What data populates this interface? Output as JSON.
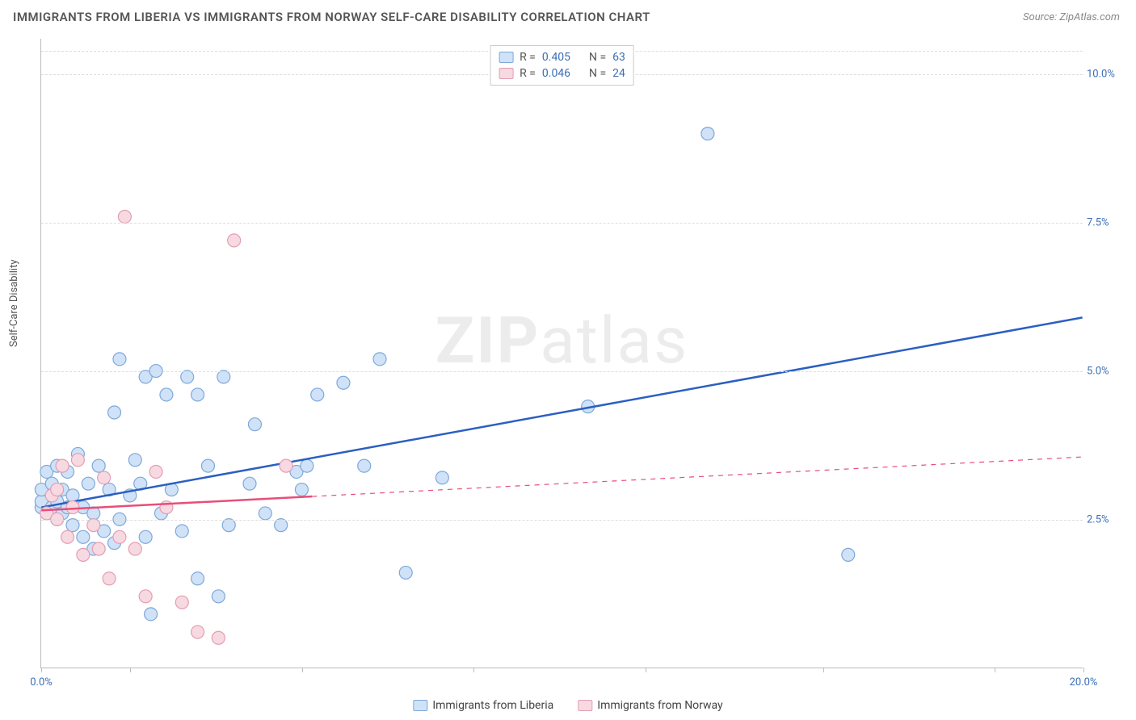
{
  "title": "IMMIGRANTS FROM LIBERIA VS IMMIGRANTS FROM NORWAY SELF-CARE DISABILITY CORRELATION CHART",
  "source": "Source: ZipAtlas.com",
  "ylabel": "Self-Care Disability",
  "watermark_bold": "ZIP",
  "watermark_rest": "atlas",
  "chart": {
    "type": "scatter",
    "xlim": [
      0,
      20
    ],
    "ylim": [
      0,
      10.6
    ],
    "xtick_positions": [
      0,
      1.7,
      5,
      8.3,
      11.6,
      15,
      18.3,
      20
    ],
    "xtick_labels": {
      "0": "0.0%",
      "20": "20.0%"
    },
    "ytick_positions": [
      2.5,
      5.0,
      7.5,
      10.0
    ],
    "ytick_labels": [
      "2.5%",
      "5.0%",
      "7.5%",
      "10.0%"
    ],
    "background_color": "#ffffff",
    "grid_color": "#dddddd",
    "axis_color": "#bbbbbb",
    "marker_radius": 8,
    "marker_stroke_width": 1.2,
    "line_width": 2.5,
    "series": [
      {
        "name": "Immigrants from Liberia",
        "fill": "#cfe2f7",
        "stroke": "#7fa8d9",
        "line_color": "#2b5fc1",
        "R": "0.405",
        "N": "63",
        "trend": {
          "x1": 0,
          "y1": 2.7,
          "x2": 20,
          "y2": 5.9
        },
        "trend_dash_after_x": null,
        "points": [
          [
            0.0,
            2.7
          ],
          [
            0.0,
            2.8
          ],
          [
            0.0,
            3.0
          ],
          [
            0.1,
            2.6
          ],
          [
            0.1,
            3.3
          ],
          [
            0.2,
            2.7
          ],
          [
            0.2,
            3.1
          ],
          [
            0.3,
            2.5
          ],
          [
            0.3,
            2.8
          ],
          [
            0.3,
            3.4
          ],
          [
            0.4,
            2.6
          ],
          [
            0.4,
            3.0
          ],
          [
            0.5,
            2.7
          ],
          [
            0.5,
            3.3
          ],
          [
            0.6,
            2.4
          ],
          [
            0.6,
            2.9
          ],
          [
            0.7,
            3.6
          ],
          [
            0.8,
            2.2
          ],
          [
            0.8,
            2.7
          ],
          [
            0.9,
            3.1
          ],
          [
            1.0,
            2.0
          ],
          [
            1.0,
            2.6
          ],
          [
            1.1,
            3.4
          ],
          [
            1.2,
            2.3
          ],
          [
            1.3,
            3.0
          ],
          [
            1.4,
            2.1
          ],
          [
            1.4,
            4.3
          ],
          [
            1.5,
            2.5
          ],
          [
            1.5,
            5.2
          ],
          [
            1.7,
            2.9
          ],
          [
            1.8,
            3.5
          ],
          [
            1.9,
            3.1
          ],
          [
            2.0,
            2.2
          ],
          [
            2.0,
            4.9
          ],
          [
            2.1,
            0.9
          ],
          [
            2.2,
            5.0
          ],
          [
            2.3,
            2.6
          ],
          [
            2.4,
            4.6
          ],
          [
            2.5,
            3.0
          ],
          [
            2.7,
            2.3
          ],
          [
            2.8,
            4.9
          ],
          [
            3.0,
            4.6
          ],
          [
            3.0,
            1.5
          ],
          [
            3.2,
            3.4
          ],
          [
            3.4,
            1.2
          ],
          [
            3.5,
            4.9
          ],
          [
            3.6,
            2.4
          ],
          [
            4.0,
            3.1
          ],
          [
            4.1,
            4.1
          ],
          [
            4.3,
            2.6
          ],
          [
            4.6,
            2.4
          ],
          [
            4.9,
            3.3
          ],
          [
            5.0,
            3.0
          ],
          [
            5.1,
            3.4
          ],
          [
            5.3,
            4.6
          ],
          [
            5.8,
            4.8
          ],
          [
            6.2,
            3.4
          ],
          [
            6.5,
            5.2
          ],
          [
            7.0,
            1.6
          ],
          [
            7.7,
            3.2
          ],
          [
            10.5,
            4.4
          ],
          [
            12.8,
            9.0
          ],
          [
            15.5,
            1.9
          ]
        ]
      },
      {
        "name": "Immigrants from Norway",
        "fill": "#f7d9e1",
        "stroke": "#e39db2",
        "line_color": "#e94d7a",
        "R": "0.046",
        "N": "24",
        "trend": {
          "x1": 0,
          "y1": 2.65,
          "x2": 20,
          "y2": 3.55
        },
        "trend_dash_after_x": 5.2,
        "points": [
          [
            0.1,
            2.6
          ],
          [
            0.2,
            2.9
          ],
          [
            0.3,
            2.5
          ],
          [
            0.3,
            3.0
          ],
          [
            0.4,
            3.4
          ],
          [
            0.5,
            2.2
          ],
          [
            0.6,
            2.7
          ],
          [
            0.7,
            3.5
          ],
          [
            0.8,
            1.9
          ],
          [
            1.0,
            2.4
          ],
          [
            1.1,
            2.0
          ],
          [
            1.2,
            3.2
          ],
          [
            1.3,
            1.5
          ],
          [
            1.5,
            2.2
          ],
          [
            1.6,
            7.6
          ],
          [
            1.8,
            2.0
          ],
          [
            2.0,
            1.2
          ],
          [
            2.2,
            3.3
          ],
          [
            2.4,
            2.7
          ],
          [
            2.7,
            1.1
          ],
          [
            3.0,
            0.6
          ],
          [
            3.4,
            0.5
          ],
          [
            3.7,
            7.2
          ],
          [
            4.7,
            3.4
          ]
        ]
      }
    ]
  },
  "legend_top": {
    "r_label": "R =",
    "n_label": "N ="
  },
  "legend_bottom": {
    "items": [
      "Immigrants from Liberia",
      "Immigrants from Norway"
    ]
  }
}
